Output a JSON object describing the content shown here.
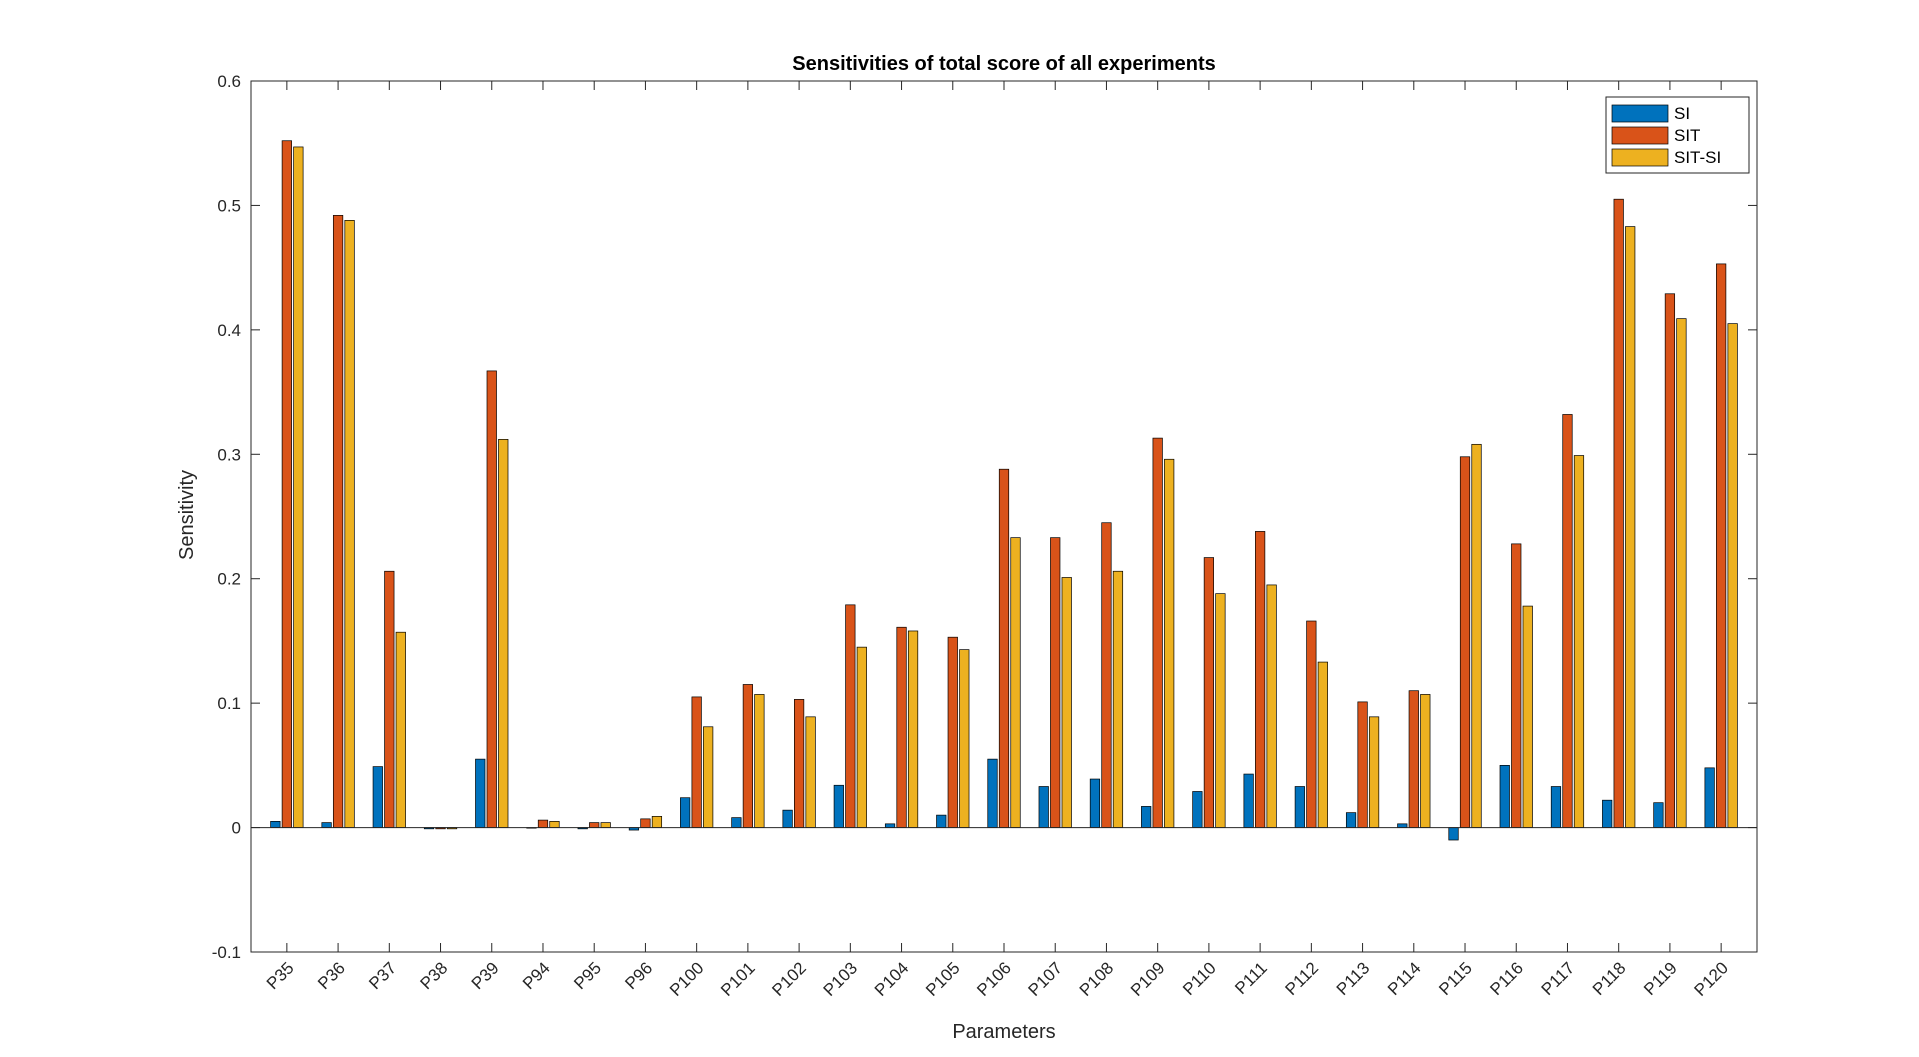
{
  "chart_data": {
    "type": "bar",
    "title": "Sensitivities of total score of all experiments",
    "xlabel": "Parameters",
    "ylabel": "Sensitivity",
    "ylim": [
      -0.1,
      0.6
    ],
    "yticks": [
      "-0.1",
      "0",
      "0.1",
      "0.2",
      "0.3",
      "0.4",
      "0.5",
      "0.6"
    ],
    "legend_position": "top-right",
    "grid": false,
    "categories": [
      "P35",
      "P36",
      "P37",
      "P38",
      "P39",
      "P94",
      "P95",
      "P96",
      "P100",
      "P101",
      "P102",
      "P103",
      "P104",
      "P105",
      "P106",
      "P107",
      "P108",
      "P109",
      "P110",
      "P111",
      "P112",
      "P113",
      "P114",
      "P115",
      "P116",
      "P117",
      "P118",
      "P119",
      "P120"
    ],
    "series": [
      {
        "name": "SI",
        "color": "#0072BD",
        "values": [
          0.005,
          0.004,
          0.049,
          -0.001,
          0.055,
          0.0,
          -0.001,
          -0.002,
          0.024,
          0.008,
          0.014,
          0.034,
          0.003,
          0.01,
          0.055,
          0.033,
          0.039,
          0.017,
          0.029,
          0.043,
          0.033,
          0.012,
          0.003,
          -0.01,
          0.05,
          0.033,
          0.022,
          0.02,
          0.048
        ]
      },
      {
        "name": "SIT",
        "color": "#D95319",
        "values": [
          0.552,
          0.492,
          0.206,
          -0.001,
          0.367,
          0.006,
          0.004,
          0.007,
          0.105,
          0.115,
          0.103,
          0.179,
          0.161,
          0.153,
          0.288,
          0.233,
          0.245,
          0.313,
          0.217,
          0.238,
          0.166,
          0.101,
          0.11,
          0.298,
          0.228,
          0.332,
          0.505,
          0.429,
          0.453
        ]
      },
      {
        "name": "SIT-SI",
        "color": "#EDB120",
        "values": [
          0.547,
          0.488,
          0.157,
          -0.001,
          0.312,
          0.005,
          0.004,
          0.009,
          0.081,
          0.107,
          0.089,
          0.145,
          0.158,
          0.143,
          0.233,
          0.201,
          0.206,
          0.296,
          0.188,
          0.195,
          0.133,
          0.089,
          0.107,
          0.308,
          0.178,
          0.299,
          0.483,
          0.409,
          0.405
        ]
      }
    ]
  }
}
